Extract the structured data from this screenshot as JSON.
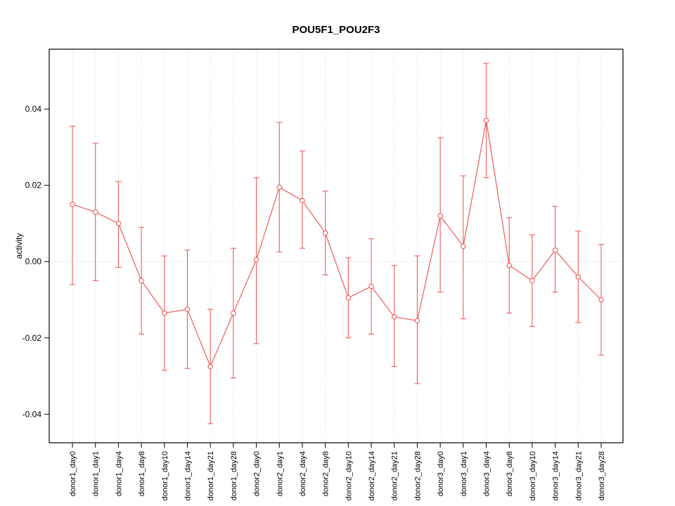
{
  "chart_data": {
    "type": "line",
    "title": "POU5F1_POU2F3",
    "ylabel": "activity",
    "xlabel": "",
    "ylim": [
      -0.0475,
      0.0557
    ],
    "yticks": [
      -0.04,
      -0.02,
      0.0,
      0.02,
      0.04
    ],
    "ytick_labels": [
      "-0.04",
      "-0.02",
      "0.00",
      "0.02",
      "0.04"
    ],
    "grid": "vertical-dotted",
    "zero_line_dotted": true,
    "point_marker": "open-circle",
    "series_color": "#f05c5c",
    "grid_color": "#d9d9d9",
    "zero_line_color": "#c9c9c9",
    "categories": [
      "donor1_day0",
      "donor1_day1",
      "donor1_day4",
      "donor1_day8",
      "donor1_day10",
      "donor1_day14",
      "donor1_day21",
      "donor1_day28",
      "donor2_day0",
      "donor2_day1",
      "donor2_day4",
      "donor2_day8",
      "donor2_day10",
      "donor2_day14",
      "donor2_day21",
      "donor2_day28",
      "donor3_day0",
      "donor3_day1",
      "donor3_day4",
      "donor3_day8",
      "donor3_day10",
      "donor3_day14",
      "donor3_day21",
      "donor3_day28"
    ],
    "values": [
      0.015,
      0.013,
      0.01,
      -0.005,
      -0.0135,
      -0.0125,
      -0.0275,
      -0.0135,
      0.0005,
      0.0195,
      0.016,
      0.0075,
      -0.0095,
      -0.0065,
      -0.0145,
      -0.0155,
      0.012,
      0.004,
      0.037,
      -0.001,
      -0.005,
      0.003,
      -0.004,
      -0.01
    ],
    "error_low": [
      -0.006,
      -0.005,
      -0.0015,
      -0.019,
      -0.0285,
      -0.028,
      -0.0425,
      -0.0305,
      -0.0215,
      0.0025,
      0.0035,
      -0.0035,
      -0.02,
      -0.019,
      -0.0275,
      -0.032,
      -0.008,
      -0.015,
      0.022,
      -0.0135,
      -0.017,
      -0.008,
      -0.016,
      -0.0245
    ],
    "error_high": [
      0.0355,
      0.031,
      0.021,
      0.009,
      0.0015,
      0.003,
      -0.0125,
      0.0035,
      0.022,
      0.0365,
      0.029,
      0.0185,
      0.001,
      0.006,
      -0.001,
      0.0015,
      0.0325,
      0.0225,
      0.052,
      0.0115,
      0.007,
      0.0145,
      0.008,
      0.0045
    ]
  }
}
